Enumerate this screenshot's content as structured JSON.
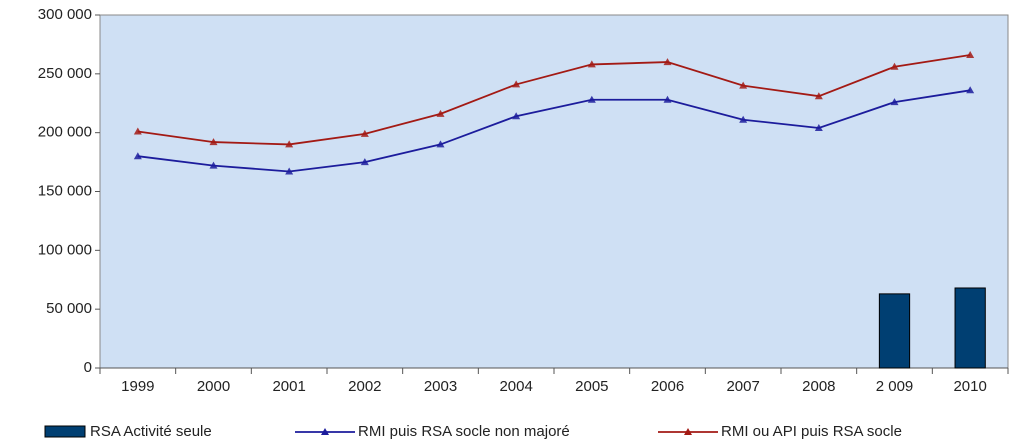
{
  "chart_data": {
    "type": "combo",
    "categories": [
      "1999",
      "2000",
      "2001",
      "2002",
      "2003",
      "2004",
      "2005",
      "2006",
      "2007",
      "2008",
      "2 009",
      "2010"
    ],
    "series": [
      {
        "name": "RSA Activité seule",
        "type": "bar",
        "color": "#003f72",
        "values": [
          null,
          null,
          null,
          null,
          null,
          null,
          null,
          null,
          null,
          null,
          63000,
          68000
        ]
      },
      {
        "name": "RMI puis RSA socle non majoré",
        "type": "line",
        "color": "#1c1c9c",
        "values": [
          180000,
          172000,
          167000,
          175000,
          190000,
          214000,
          228000,
          228000,
          211000,
          204000,
          226000,
          236000
        ]
      },
      {
        "name": "RMI ou API puis RSA socle",
        "type": "line",
        "color": "#a31a14",
        "values": [
          201000,
          192000,
          190000,
          199000,
          216000,
          241000,
          258000,
          260000,
          240000,
          231000,
          256000,
          266000
        ]
      }
    ],
    "ylim": [
      0,
      300000
    ],
    "yticks": [
      0,
      {
        "value": 50000,
        "label": "50 000"
      },
      {
        "value": 100000,
        "label": "100 000"
      },
      {
        "value": 150000,
        "label": "150 000"
      },
      {
        "value": 200000,
        "label": "200 000"
      },
      {
        "value": 250000,
        "label": "250 000"
      },
      {
        "value": 300000,
        "label": "300 000"
      }
    ],
    "background": "#cfe0f4"
  }
}
